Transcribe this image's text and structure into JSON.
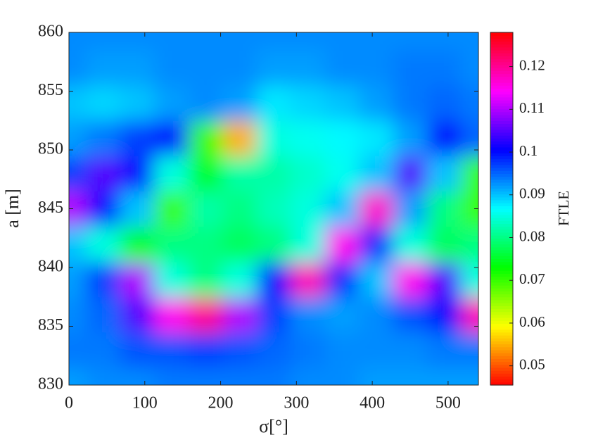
{
  "chart_data": {
    "type": "heatmap",
    "xlabel": "σ[°]",
    "ylabel": "a [m]",
    "colorbar_label": "FTLE",
    "colormap": "hsv",
    "x": [
      0,
      45,
      90,
      135,
      180,
      225,
      270,
      315,
      360,
      405,
      450,
      495,
      540
    ],
    "y": [
      830,
      833,
      836,
      839,
      842,
      845,
      848,
      851,
      854,
      857,
      860
    ],
    "z": [
      [
        0.092,
        0.093,
        0.093,
        0.094,
        0.094,
        0.094,
        0.094,
        0.093,
        0.093,
        0.092,
        0.092,
        0.092,
        0.092
      ],
      [
        0.094,
        0.094,
        0.096,
        0.096,
        0.097,
        0.096,
        0.095,
        0.094,
        0.093,
        0.093,
        0.093,
        0.094,
        0.094
      ],
      [
        0.093,
        0.095,
        0.105,
        0.115,
        0.12,
        0.11,
        0.097,
        0.093,
        0.092,
        0.093,
        0.096,
        0.1,
        0.118
      ],
      [
        0.092,
        0.097,
        0.11,
        0.085,
        0.08,
        0.085,
        0.1,
        0.118,
        0.098,
        0.09,
        0.115,
        0.105,
        0.085
      ],
      [
        0.09,
        0.085,
        0.075,
        0.08,
        0.08,
        0.078,
        0.08,
        0.085,
        0.115,
        0.098,
        0.085,
        0.078,
        0.08
      ],
      [
        0.11,
        0.1,
        0.09,
        0.07,
        0.082,
        0.08,
        0.083,
        0.085,
        0.09,
        0.117,
        0.092,
        0.08,
        0.07
      ],
      [
        0.097,
        0.105,
        0.1,
        0.085,
        0.075,
        0.082,
        0.082,
        0.084,
        0.086,
        0.09,
        0.105,
        0.09,
        0.07
      ],
      [
        0.092,
        0.094,
        0.097,
        0.1,
        0.07,
        0.055,
        0.085,
        0.086,
        0.087,
        0.088,
        0.092,
        0.1,
        0.095
      ],
      [
        0.09,
        0.089,
        0.09,
        0.092,
        0.093,
        0.092,
        0.088,
        0.089,
        0.09,
        0.092,
        0.094,
        0.095,
        0.094
      ],
      [
        0.093,
        0.092,
        0.092,
        0.093,
        0.093,
        0.093,
        0.092,
        0.092,
        0.093,
        0.093,
        0.094,
        0.094,
        0.093
      ],
      [
        0.093,
        0.093,
        0.093,
        0.093,
        0.093,
        0.093,
        0.093,
        0.093,
        0.093,
        0.093,
        0.093,
        0.093,
        0.093
      ]
    ],
    "xlim": [
      0,
      540
    ],
    "xticks": [
      0,
      100,
      200,
      300,
      400,
      500
    ],
    "ylim": [
      830,
      860
    ],
    "yticks": [
      830,
      835,
      840,
      845,
      850,
      855,
      860
    ],
    "clim": [
      0.0455,
      0.128
    ],
    "cticks": [
      0.05,
      0.06,
      0.07,
      0.08,
      0.09,
      0.1,
      0.11,
      0.12
    ]
  }
}
